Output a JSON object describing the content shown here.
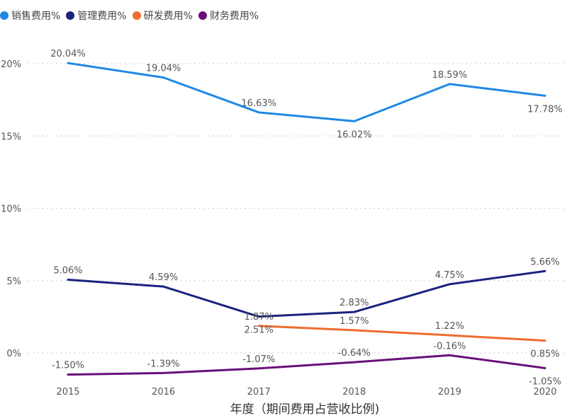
{
  "chart_data": {
    "type": "line",
    "title": "",
    "xlabel": "年度（期间费用占营收比例)",
    "ylabel": "",
    "x": [
      "2015",
      "2016",
      "2017",
      "2018",
      "2019",
      "2020"
    ],
    "ylim": [
      -1.5,
      21
    ],
    "yticks": [
      0,
      5,
      10,
      15,
      20
    ],
    "ytick_labels": [
      "0%",
      "5%",
      "10%",
      "15%",
      "20%"
    ],
    "grid": true,
    "legend_position": "top-left",
    "series": [
      {
        "name": "销售费用%",
        "color": "#1e88e5",
        "values": [
          20.04,
          19.04,
          16.63,
          16.02,
          18.59,
          17.78
        ],
        "labels": [
          "20.04%",
          "19.04%",
          "16.63%",
          "16.02%",
          "18.59%",
          "17.78%"
        ],
        "label_pos": [
          "above",
          "above",
          "above",
          "below",
          "above",
          "below"
        ]
      },
      {
        "name": "管理费用%",
        "color": "#1a237e",
        "values": [
          5.06,
          4.59,
          2.51,
          2.83,
          4.75,
          5.66
        ],
        "labels": [
          "5.06%",
          "4.59%",
          "2.51%",
          "2.83%",
          "4.75%",
          "5.66%"
        ],
        "label_pos": [
          "above",
          "above",
          "below",
          "above",
          "above",
          "above"
        ]
      },
      {
        "name": "研发费用%",
        "color": "#ef6c2e",
        "values": [
          null,
          null,
          1.87,
          1.57,
          1.22,
          0.85
        ],
        "labels": [
          "",
          "",
          "1.87%",
          "1.57%",
          "1.22%",
          "0.85%"
        ],
        "label_pos": [
          "above",
          "above",
          "above",
          "above",
          "above",
          "below"
        ]
      },
      {
        "name": "财务费用%",
        "color": "#6a0f7a",
        "values": [
          -1.5,
          -1.39,
          -1.07,
          -0.64,
          -0.16,
          -1.05
        ],
        "labels": [
          "-1.50%",
          "-1.39%",
          "-1.07%",
          "-0.64%",
          "-0.16%",
          "-1.05%"
        ],
        "label_pos": [
          "above",
          "above",
          "above",
          "above",
          "above",
          "below"
        ]
      }
    ]
  }
}
